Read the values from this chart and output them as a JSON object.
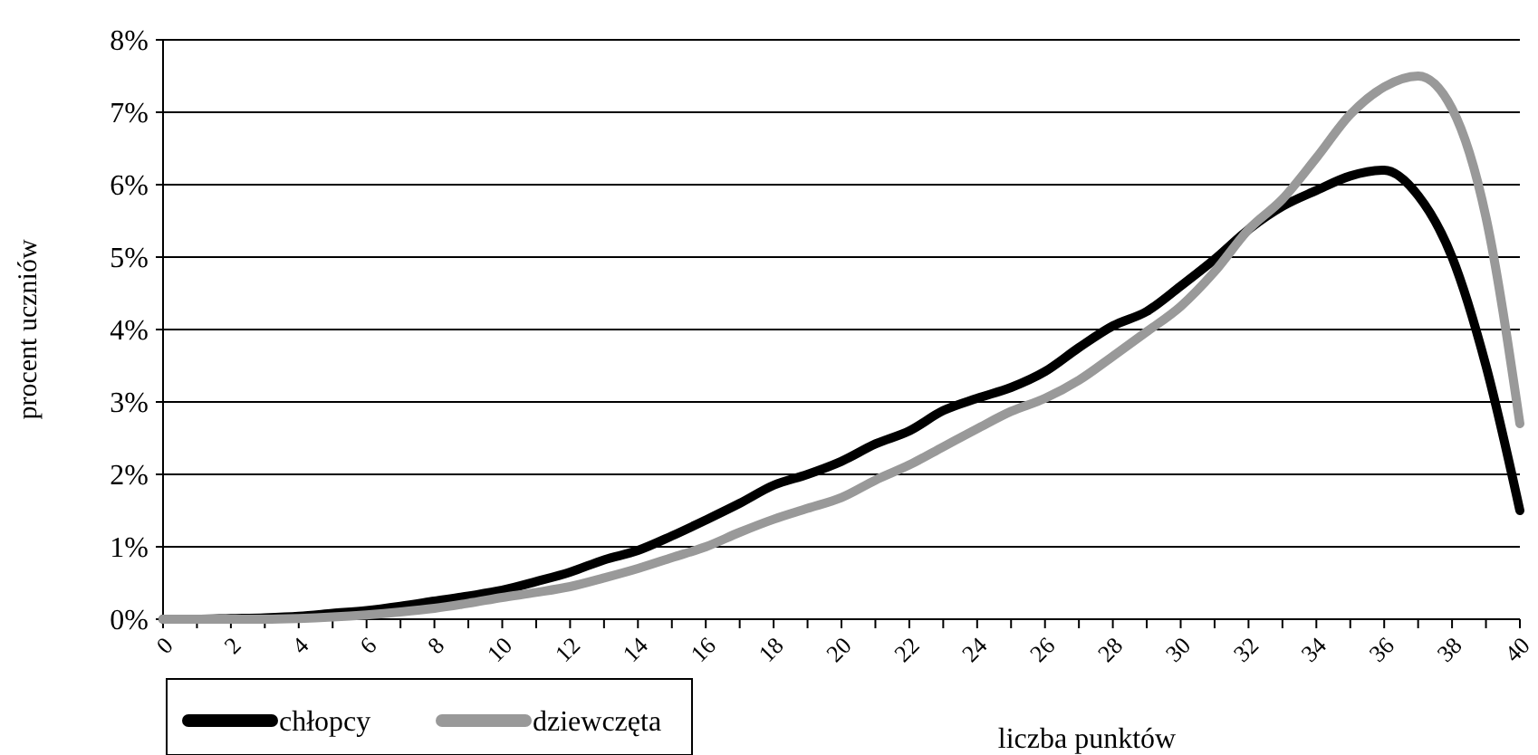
{
  "chart_data": {
    "type": "line",
    "xlabel": "liczba punktów",
    "ylabel": "procent uczniów",
    "x": [
      0,
      1,
      2,
      3,
      4,
      5,
      6,
      7,
      8,
      9,
      10,
      11,
      12,
      13,
      14,
      15,
      16,
      17,
      18,
      19,
      20,
      21,
      22,
      23,
      24,
      25,
      26,
      27,
      28,
      29,
      30,
      31,
      32,
      33,
      34,
      35,
      36,
      37,
      38,
      39,
      40
    ],
    "series": [
      {
        "name": "chłopcy",
        "color": "#000000",
        "values": [
          0,
          0,
          0.01,
          0.02,
          0.04,
          0.08,
          0.12,
          0.18,
          0.25,
          0.32,
          0.4,
          0.52,
          0.65,
          0.82,
          0.95,
          1.15,
          1.37,
          1.6,
          1.85,
          2.0,
          2.18,
          2.42,
          2.6,
          2.88,
          3.05,
          3.2,
          3.42,
          3.75,
          4.05,
          4.25,
          4.6,
          4.97,
          5.38,
          5.7,
          5.92,
          6.12,
          6.2,
          5.85,
          5.0,
          3.5,
          1.5
        ]
      },
      {
        "name": "dziewczęta",
        "color": "#999999",
        "values": [
          0,
          0,
          0,
          0,
          0.01,
          0.03,
          0.06,
          0.1,
          0.15,
          0.22,
          0.3,
          0.37,
          0.45,
          0.57,
          0.7,
          0.85,
          1.0,
          1.2,
          1.38,
          1.53,
          1.68,
          1.92,
          2.13,
          2.38,
          2.63,
          2.87,
          3.05,
          3.3,
          3.63,
          3.97,
          4.32,
          4.8,
          5.38,
          5.8,
          6.37,
          6.97,
          7.35,
          7.5,
          7.05,
          5.55,
          2.7
        ]
      }
    ],
    "xlim": [
      0,
      40
    ],
    "xticks": [
      0,
      {
        "value": 1,
        "label": null
      },
      2,
      {
        "value": 3,
        "label": null
      },
      4,
      {
        "value": 5,
        "label": null
      },
      6,
      {
        "value": 7,
        "label": null
      },
      8,
      {
        "value": 9,
        "label": null
      },
      10,
      {
        "value": 11,
        "label": null
      },
      12,
      {
        "value": 13,
        "label": null
      },
      14,
      {
        "value": 15,
        "label": null
      },
      16,
      {
        "value": 17,
        "label": null
      },
      18,
      {
        "value": 19,
        "label": null
      },
      20,
      {
        "value": 21,
        "label": null
      },
      22,
      {
        "value": 23,
        "label": null
      },
      24,
      {
        "value": 25,
        "label": null
      },
      26,
      {
        "value": 27,
        "label": null
      },
      28,
      {
        "value": 29,
        "label": null
      },
      30,
      {
        "value": 31,
        "label": null
      },
      32,
      {
        "value": 33,
        "label": null
      },
      34,
      {
        "value": 35,
        "label": null
      },
      36,
      {
        "value": 37,
        "label": null
      },
      38,
      {
        "value": 39,
        "label": null
      },
      40
    ],
    "ylim": [
      0,
      8
    ],
    "yticks": [
      {
        "value": 0,
        "label": "0%"
      },
      {
        "value": 1,
        "label": "1%"
      },
      {
        "value": 2,
        "label": "2%"
      },
      {
        "value": 3,
        "label": "3%"
      },
      {
        "value": 4,
        "label": "4%"
      },
      {
        "value": 5,
        "label": "5%"
      },
      {
        "value": 6,
        "label": "6%"
      },
      {
        "value": 7,
        "label": "7%"
      },
      {
        "value": 8,
        "label": "8%"
      }
    ],
    "grid": "y",
    "legend": "bottom left",
    "marker": "none",
    "line_style": "solid"
  }
}
